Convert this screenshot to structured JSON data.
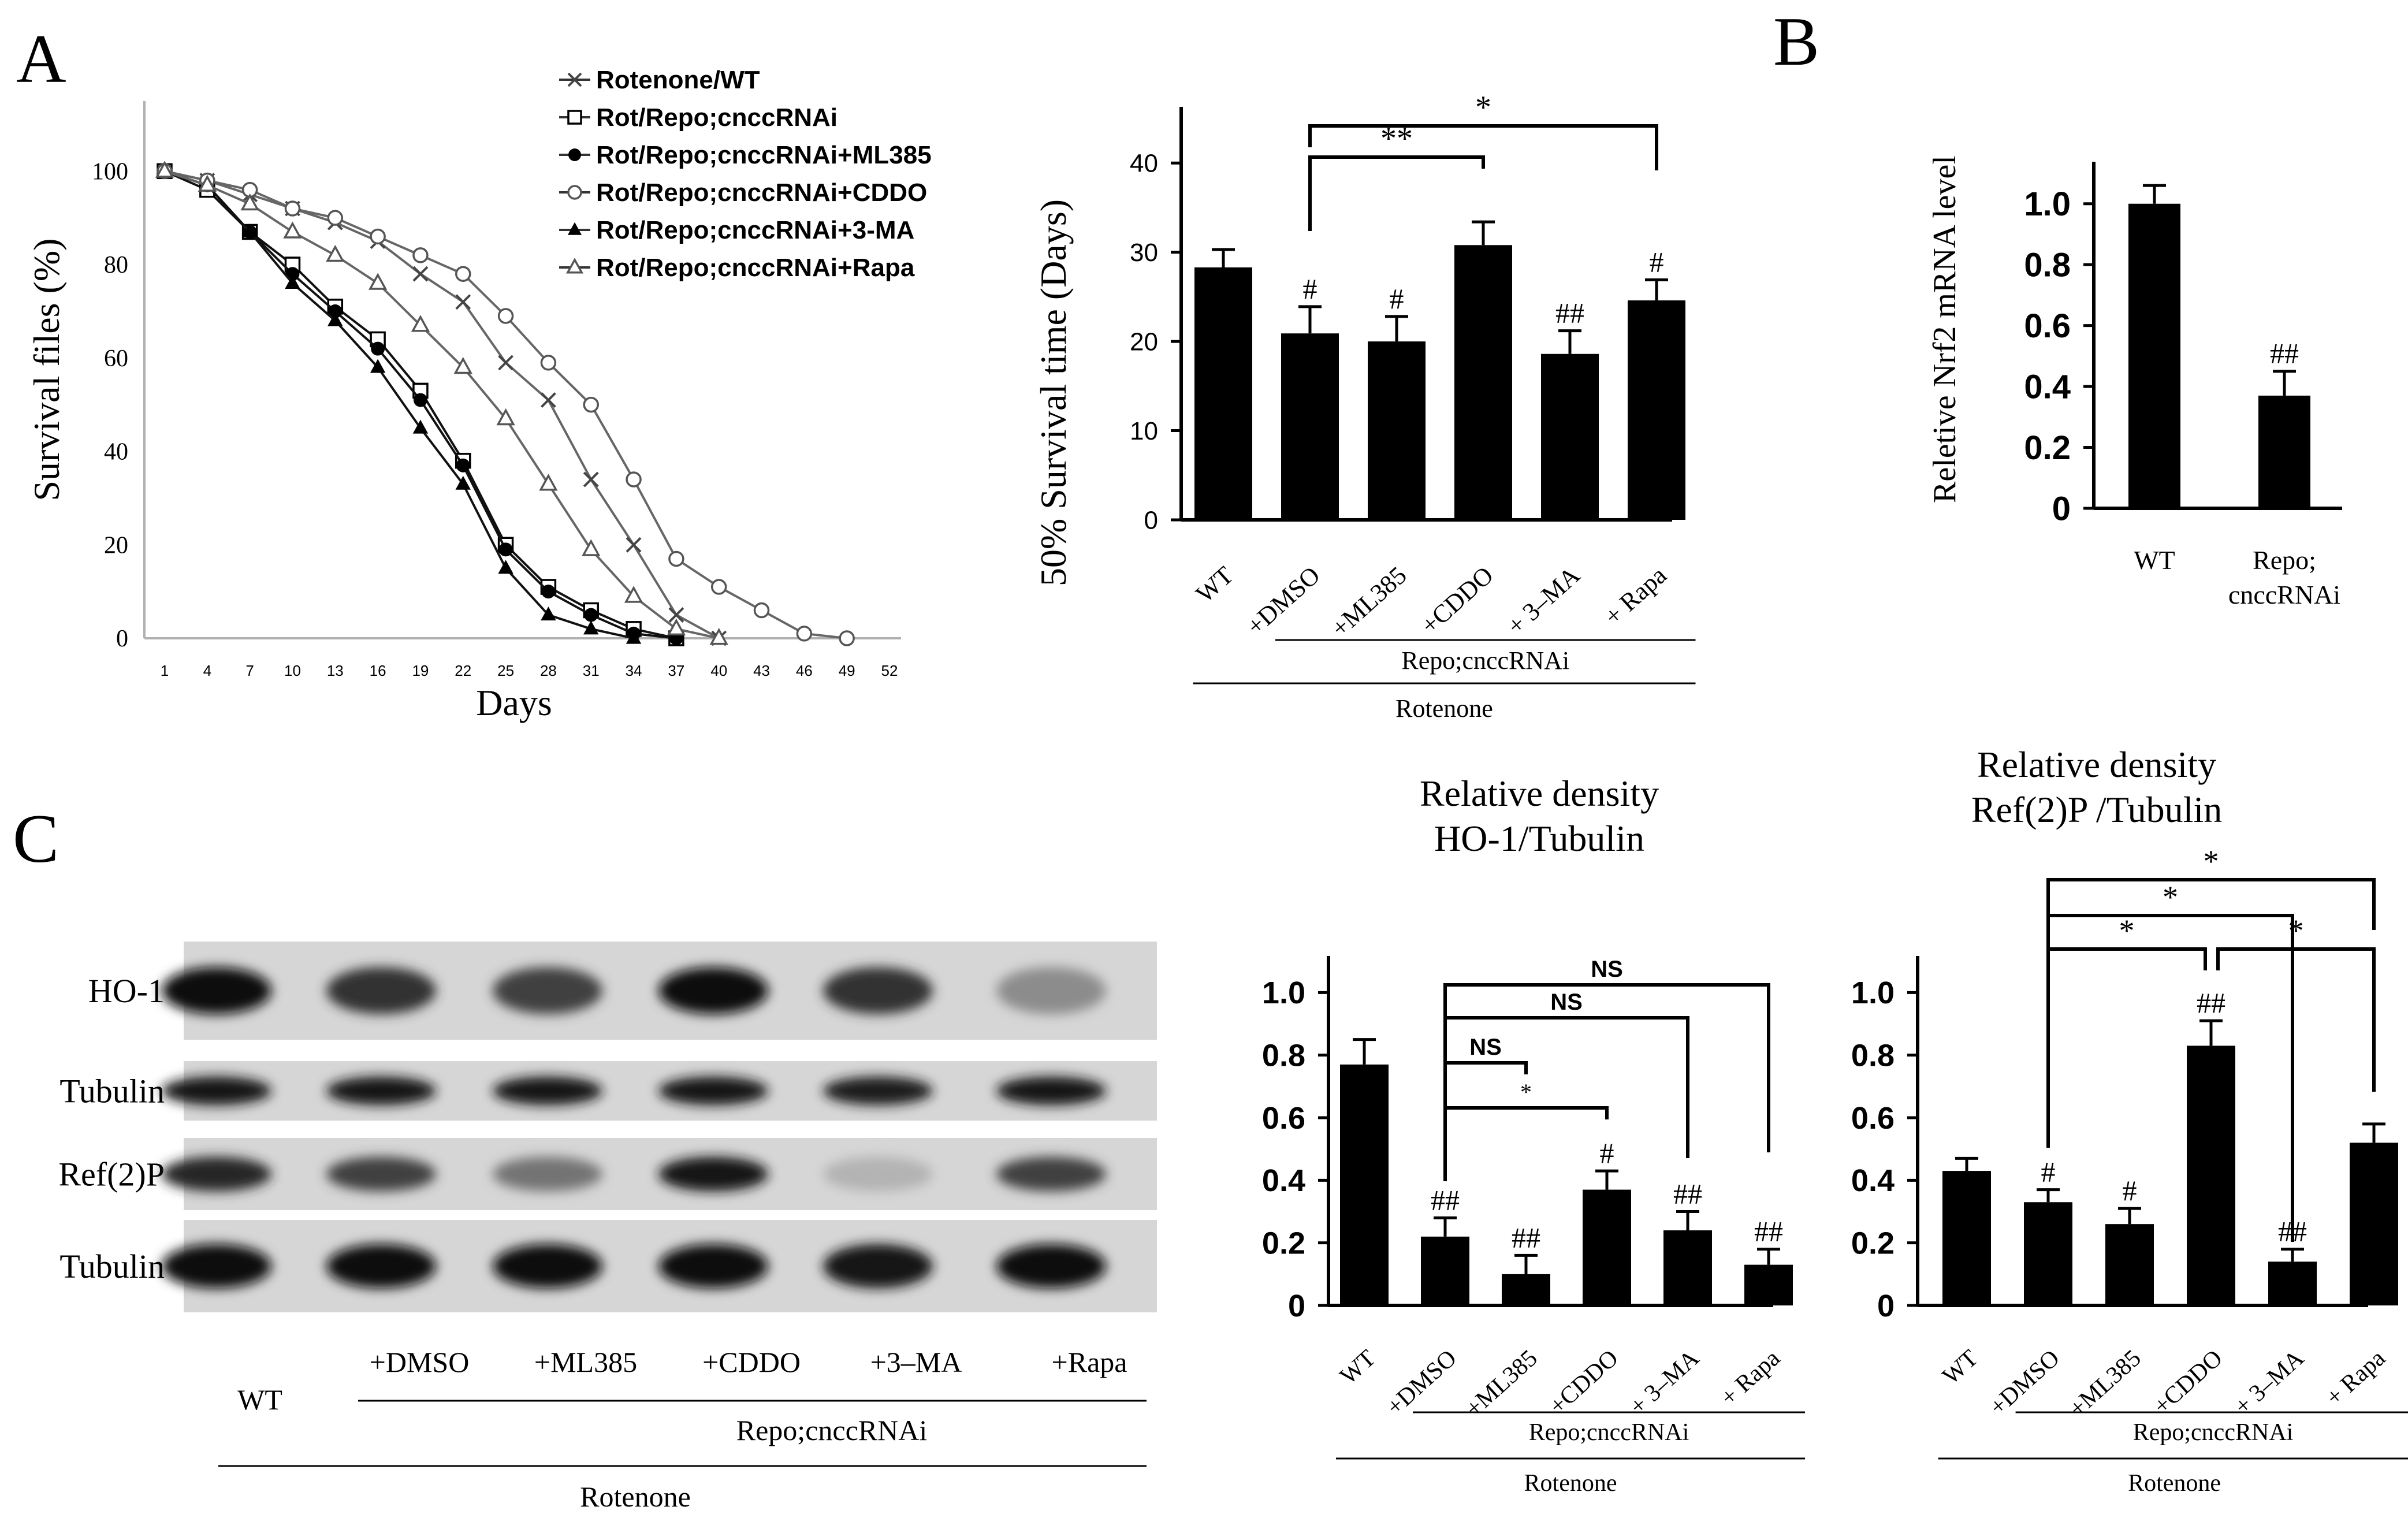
{
  "panels": {
    "A": "A",
    "B": "B",
    "C": "C"
  },
  "chart_data": [
    {
      "id": "survival",
      "type": "line",
      "xlabel": "Days",
      "ylabel": "Survival files (%)",
      "x": [
        1,
        4,
        7,
        10,
        13,
        16,
        19,
        22,
        25,
        28,
        31,
        34,
        37,
        40,
        43,
        46,
        49,
        52
      ],
      "xlim": [
        1,
        52
      ],
      "ylim": [
        0,
        115
      ],
      "yticks": [
        0,
        20,
        40,
        60,
        80,
        100
      ],
      "series": [
        {
          "name": "Rotenone/WT",
          "marker": "x",
          "x": [
            1,
            4,
            7,
            10,
            13,
            16,
            19,
            22,
            25,
            28,
            31,
            34,
            37,
            40
          ],
          "y": [
            100,
            98,
            95,
            92,
            89,
            85,
            78,
            72,
            59,
            51,
            34,
            20,
            5,
            0
          ]
        },
        {
          "name": "Rot/Repo;cnccRNAi",
          "marker": "square-open",
          "x": [
            1,
            4,
            7,
            10,
            13,
            16,
            19,
            22,
            25,
            28,
            31,
            34,
            37
          ],
          "y": [
            100,
            96,
            87,
            80,
            71,
            64,
            53,
            38,
            20,
            11,
            6,
            2,
            0
          ]
        },
        {
          "name": "Rot/Repo;cnccRNAi+ML385",
          "marker": "circle-filled",
          "x": [
            1,
            4,
            7,
            10,
            13,
            16,
            19,
            22,
            25,
            28,
            31,
            34,
            37
          ],
          "y": [
            100,
            97,
            87,
            78,
            70,
            62,
            51,
            37,
            19,
            10,
            5,
            1,
            0
          ]
        },
        {
          "name": "Rot/Repo;cnccRNAi+CDDO",
          "marker": "circle-open",
          "x": [
            1,
            4,
            7,
            10,
            13,
            16,
            19,
            22,
            25,
            28,
            31,
            34,
            37,
            40,
            43,
            46,
            49
          ],
          "y": [
            100,
            98,
            96,
            92,
            90,
            86,
            82,
            78,
            69,
            59,
            50,
            34,
            17,
            11,
            6,
            1,
            0
          ]
        },
        {
          "name": "Rot/Repo;cnccRNAi+3-MA",
          "marker": "triangle-filled",
          "x": [
            1,
            4,
            7,
            10,
            13,
            16,
            19,
            22,
            25,
            28,
            31,
            34
          ],
          "y": [
            100,
            97,
            87,
            76,
            68,
            58,
            45,
            33,
            15,
            5,
            2,
            0
          ]
        },
        {
          "name": "Rot/Repo;cnccRNAi+Rapa",
          "marker": "triangle-open",
          "x": [
            1,
            4,
            7,
            10,
            13,
            16,
            19,
            22,
            25,
            28,
            31,
            34,
            37,
            40
          ],
          "y": [
            100,
            97,
            93,
            87,
            82,
            76,
            67,
            58,
            47,
            33,
            19,
            9,
            2,
            0
          ]
        }
      ]
    },
    {
      "id": "survival50",
      "type": "bar",
      "ylabel": "50% Survival time (Days)",
      "ylim": [
        0,
        45
      ],
      "yticks": [
        0,
        10,
        20,
        30,
        40
      ],
      "categories": [
        "WT",
        "+DMSO",
        "+ML385",
        "+CDDO",
        "+ 3–MA",
        "+ Rapa"
      ],
      "values": [
        28.3,
        20.9,
        20.0,
        30.8,
        18.6,
        24.6
      ],
      "errors": [
        2.0,
        3.0,
        2.8,
        2.6,
        2.6,
        2.3
      ],
      "marks": [
        "",
        "#",
        "#",
        "",
        "##",
        "#"
      ],
      "group_label": "Repo;cnccRNAi",
      "outer_label": "Rotenone",
      "comparisons": [
        {
          "from": 1,
          "to": 3,
          "label": "**"
        },
        {
          "from": 1,
          "to": 5,
          "label": "*"
        }
      ]
    },
    {
      "id": "nrf2",
      "type": "bar",
      "ylabel": "Reletive Nrf2 mRNA level",
      "ylim": [
        0,
        1.1
      ],
      "yticks": [
        "0",
        "0.2",
        "0.4",
        "0.6",
        "0.8",
        "1.0"
      ],
      "categories": [
        "WT",
        "Repo;\ncnccRNAi"
      ],
      "values": [
        1.0,
        0.37
      ],
      "errors": [
        0.06,
        0.08
      ],
      "marks": [
        "",
        "##"
      ]
    },
    {
      "id": "ho1",
      "type": "bar",
      "title": "Relative density\nHO-1/Tubulin",
      "ylim": [
        0,
        1.08
      ],
      "yticks": [
        "0",
        "0.2",
        "0.4",
        "0.6",
        "0.8",
        "1.0"
      ],
      "categories": [
        "WT",
        "+DMSO",
        "+ML385",
        "+CDDO",
        "+ 3–MA",
        "+ Rapa"
      ],
      "values": [
        0.77,
        0.22,
        0.1,
        0.37,
        0.24,
        0.13
      ],
      "errors": [
        0.08,
        0.06,
        0.06,
        0.06,
        0.06,
        0.05
      ],
      "marks": [
        "",
        "##",
        "##",
        "#",
        "##",
        "##"
      ],
      "group_label": "Repo;cnccRNAi",
      "outer_label": "Rotenone",
      "comparisons": [
        {
          "from": 1,
          "to": 5,
          "label": "NS"
        },
        {
          "from": 1,
          "to": 4,
          "label": "NS"
        },
        {
          "from": 1,
          "to": 2,
          "label": "NS"
        },
        {
          "from": 1,
          "to": 3,
          "label": "*"
        }
      ]
    },
    {
      "id": "ref2p",
      "type": "bar",
      "title": "Relative density\nRef(2)P /Tubulin",
      "ylim": [
        0,
        1.08
      ],
      "yticks": [
        "0",
        "0.2",
        "0.4",
        "0.6",
        "0.8",
        "1.0"
      ],
      "categories": [
        "WT",
        "+DMSO",
        "+ML385",
        "+CDDO",
        "+ 3–MA",
        "+ Rapa"
      ],
      "values": [
        0.43,
        0.33,
        0.26,
        0.83,
        0.14,
        0.52
      ],
      "errors": [
        0.04,
        0.04,
        0.05,
        0.08,
        0.04,
        0.06
      ],
      "marks": [
        "",
        "#",
        "#",
        "##",
        "##",
        ""
      ],
      "group_label": "Repo;cnccRNAi",
      "outer_label": "Rotenone",
      "comparisons": [
        {
          "from": 1,
          "to": 5,
          "label": "*"
        },
        {
          "from": 1,
          "to": 4,
          "label": "*"
        },
        {
          "from": 1,
          "to": 3,
          "label": "*"
        },
        {
          "from": 3,
          "to": 5,
          "label": "*"
        }
      ]
    }
  ],
  "blot": {
    "rows": [
      {
        "label": "HO-1",
        "intensities": [
          0.95,
          0.8,
          0.75,
          0.95,
          0.8,
          0.45
        ]
      },
      {
        "label": "Tubulin",
        "intensities": [
          0.9,
          0.9,
          0.9,
          0.9,
          0.88,
          0.9
        ]
      },
      {
        "label": "Ref(2)P",
        "intensities": [
          0.85,
          0.75,
          0.55,
          0.9,
          0.3,
          0.75
        ]
      },
      {
        "label": "Tubulin",
        "intensities": [
          0.95,
          0.95,
          0.95,
          0.95,
          0.9,
          0.95
        ]
      }
    ],
    "lanes": [
      "WT",
      "+DMSO",
      "+ML385",
      "+CDDO",
      "+3–MA",
      "+Rapa"
    ],
    "group_label": "Repo;cnccRNAi",
    "outer_label": "Rotenone"
  }
}
